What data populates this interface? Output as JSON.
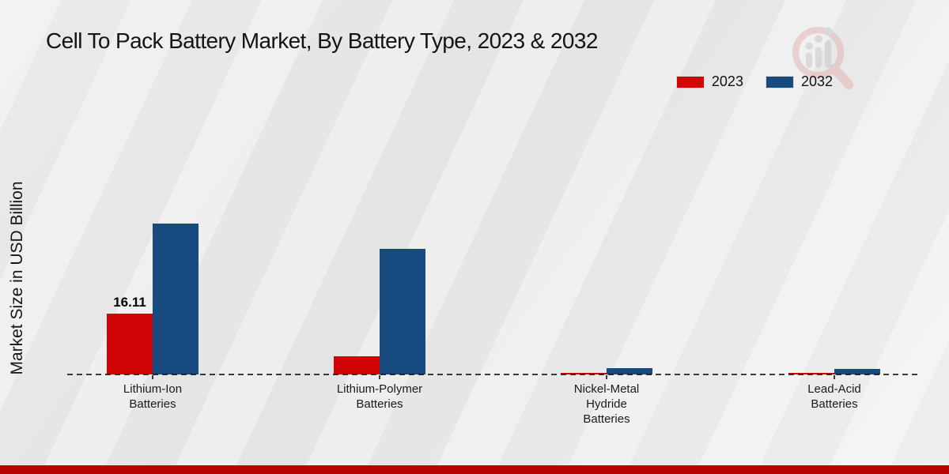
{
  "chart_data": {
    "type": "bar",
    "title": "Cell To Pack Battery Market, By Battery Type, 2023 & 2032",
    "xlabel": "",
    "ylabel": "Market Size in USD Billion",
    "categories": [
      "Lithium-Ion Batteries",
      "Lithium-Polymer Batteries",
      "Nickel-Metal Hydride Batteries",
      "Lead-Acid Batteries"
    ],
    "categories_display": [
      "Lithium-Ion\nBatteries",
      "Lithium-Polymer\nBatteries",
      "Nickel-Metal\nHydride\nBatteries",
      "Lead-Acid\nBatteries"
    ],
    "series": [
      {
        "name": "2023",
        "color": "#d10505",
        "values": [
          16.11,
          4.8,
          0.45,
          0.35
        ]
      },
      {
        "name": "2032",
        "color": "#174a7f",
        "values": [
          40.0,
          33.3,
          1.7,
          1.5
        ]
      }
    ],
    "data_labels": [
      {
        "series": "2023",
        "category": "Lithium-Ion Batteries",
        "text": "16.11"
      }
    ],
    "ylim": [
      0,
      42
    ],
    "grid": false,
    "legend_position": "top-right",
    "baseline_style": "dashed"
  },
  "watermark_icon": "magnifier-bar-chart-logo",
  "colors": {
    "accent_red": "#d10505",
    "accent_blue": "#174a7f",
    "footer_bar": "#ba0303"
  }
}
